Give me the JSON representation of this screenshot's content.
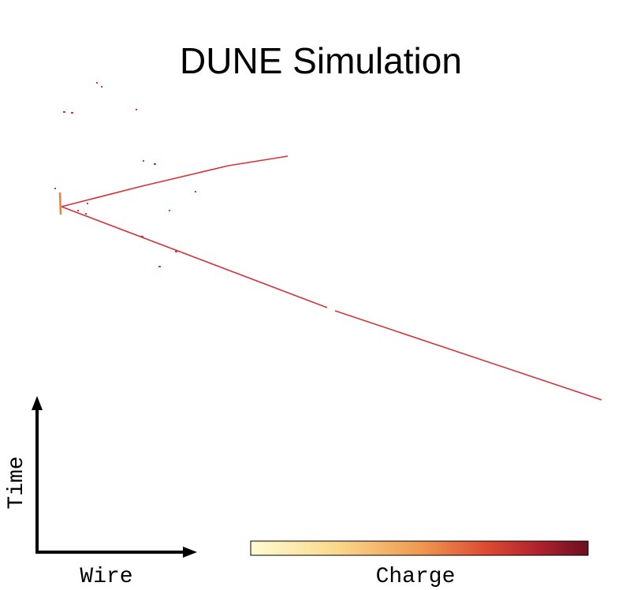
{
  "title": "DUNE Simulation",
  "axes": {
    "y_label": "Time",
    "x_label": "Wire"
  },
  "colorbar": {
    "label": "Charge"
  }
}
